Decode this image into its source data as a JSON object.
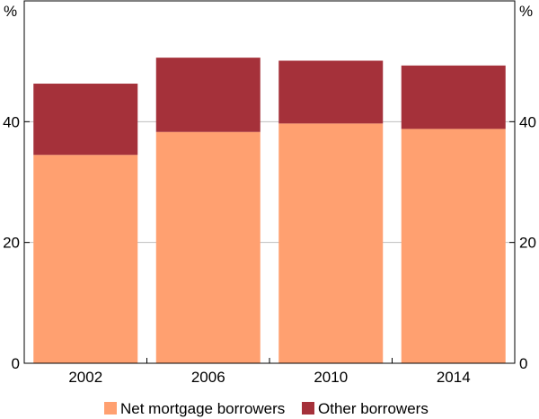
{
  "chart_data": {
    "type": "bar",
    "stacked": true,
    "categories": [
      "2002",
      "2006",
      "2010",
      "2014"
    ],
    "series": [
      {
        "name": "Net mortgage borrowers",
        "values": [
          34.5,
          38.3,
          39.7,
          38.8
        ],
        "color": "#FFA070"
      },
      {
        "name": "Other borrowers",
        "values": [
          11.8,
          12.3,
          10.4,
          10.5
        ],
        "color": "#A5313A"
      }
    ],
    "ylim": [
      0,
      60
    ],
    "yticks": [
      0,
      20,
      40
    ],
    "y_unit_left": "%",
    "y_unit_right": "%",
    "grid": true,
    "grid_color": "#BEBEBE",
    "legend_position": "bottom"
  }
}
